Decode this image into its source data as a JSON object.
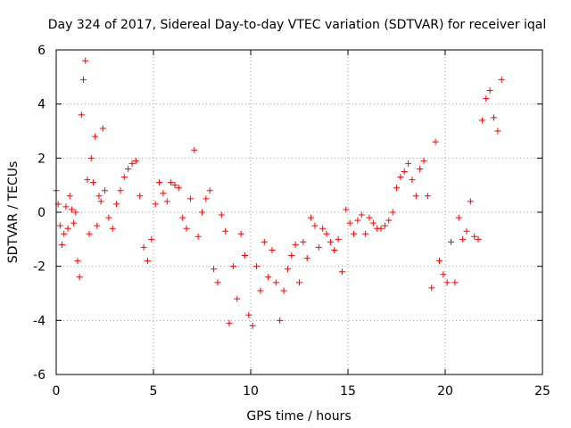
{
  "chart_data": {
    "type": "scatter",
    "title": "Day 324 of 2017, Sidereal Day-to-day VTEC variation (SDTVAR) for receiver iqal",
    "xlabel": "GPS time / hours",
    "ylabel": "SDTVAR / TECUs",
    "xlim": [
      0,
      25
    ],
    "ylim": [
      -6,
      6
    ],
    "xticks": [
      "0",
      "5",
      "10",
      "15",
      "20",
      "25"
    ],
    "yticks": [
      "-6",
      "-4",
      "-2",
      "0",
      "2",
      "4",
      "6"
    ],
    "grid": true,
    "marker": "+",
    "series": [
      {
        "name": "SDTVAR",
        "color": "#ff0000",
        "x": [
          0.0,
          0.1,
          0.2,
          0.3,
          0.4,
          0.5,
          0.6,
          0.7,
          0.8,
          0.9,
          1.0,
          1.1,
          1.2,
          1.3,
          1.4,
          1.5,
          1.6,
          1.7,
          1.8,
          1.9,
          2.0,
          2.1,
          2.2,
          2.3,
          2.4,
          2.5,
          2.7,
          2.9,
          3.1,
          3.3,
          3.5,
          3.7,
          3.9,
          4.1,
          4.3,
          4.5,
          4.7,
          4.9,
          5.1,
          5.3,
          5.5,
          5.7,
          5.9,
          6.1,
          6.3,
          6.5,
          6.7,
          6.9,
          7.1,
          7.3,
          7.5,
          7.7,
          7.9,
          8.1,
          8.3,
          8.5,
          8.7,
          8.9,
          9.1,
          9.3,
          9.5,
          9.7,
          9.9,
          10.1,
          10.3,
          10.5,
          10.7,
          10.9,
          11.1,
          11.3,
          11.5,
          11.7,
          11.9,
          12.1,
          12.3,
          12.5,
          12.7,
          12.9,
          13.1,
          13.3,
          13.5,
          13.7,
          13.9,
          14.1,
          14.3,
          14.5,
          14.7,
          14.9,
          15.1,
          15.3,
          15.5,
          15.7,
          15.9,
          16.1,
          16.3,
          16.5,
          16.7,
          16.9,
          17.1,
          17.3,
          17.5,
          17.7,
          17.9,
          18.1,
          18.3,
          18.5,
          18.7,
          18.9,
          19.1,
          19.3,
          19.5,
          19.7,
          19.9,
          20.1,
          20.3,
          20.5,
          20.7,
          20.9,
          21.1,
          21.3,
          21.5,
          21.7,
          21.9,
          22.1,
          22.3,
          22.5,
          22.7,
          22.9
        ],
        "y": [
          0.8,
          0.3,
          -0.5,
          -1.2,
          -0.8,
          0.2,
          -0.6,
          0.6,
          0.1,
          -0.4,
          0.0,
          -1.8,
          -2.4,
          3.6,
          4.9,
          5.6,
          1.2,
          -0.8,
          2.0,
          1.1,
          2.8,
          -0.5,
          0.6,
          0.4,
          3.1,
          0.8,
          -0.2,
          -0.6,
          0.3,
          0.8,
          1.3,
          1.6,
          1.8,
          1.9,
          0.6,
          -1.3,
          -1.8,
          -1.0,
          0.3,
          1.1,
          0.7,
          0.4,
          1.1,
          1.0,
          0.9,
          -0.2,
          -0.6,
          0.5,
          2.3,
          -0.9,
          0.0,
          0.5,
          0.8,
          -2.1,
          -2.6,
          -0.1,
          -0.7,
          -4.1,
          -2.0,
          -3.2,
          -0.8,
          -1.6,
          -3.8,
          -4.2,
          -2.0,
          -2.9,
          -1.1,
          -2.4,
          -1.4,
          -2.6,
          -4.0,
          -2.9,
          -2.1,
          -1.6,
          -1.2,
          -2.6,
          -1.1,
          -1.7,
          -0.2,
          -0.5,
          -1.3,
          -0.6,
          -0.8,
          -1.1,
          -1.4,
          -1.0,
          -2.2,
          0.1,
          -0.4,
          -0.8,
          -0.3,
          -0.1,
          -0.8,
          -0.2,
          -0.4,
          -0.6,
          -0.6,
          -0.5,
          -0.3,
          0.0,
          0.9,
          1.3,
          1.5,
          1.8,
          1.2,
          0.6,
          1.6,
          1.9,
          0.6,
          -2.8,
          2.6,
          -1.8,
          -2.3,
          -2.6,
          -1.1,
          -2.6,
          -0.2,
          -1.0,
          -0.7,
          0.4,
          -0.9,
          -1.0,
          3.4,
          4.2,
          4.5,
          3.5,
          3.0,
          4.9
        ]
      }
    ]
  }
}
